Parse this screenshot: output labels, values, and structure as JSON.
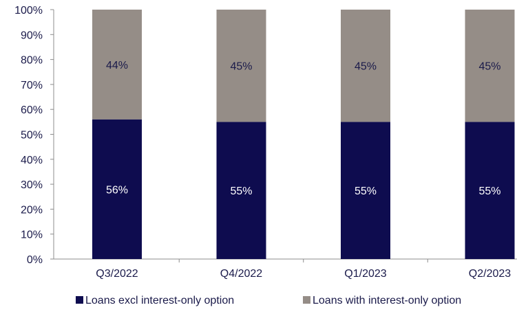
{
  "chart_data": {
    "type": "bar",
    "stacked": true,
    "percent_stacked": true,
    "categories": [
      "Q3/2022",
      "Q4/2022",
      "Q1/2023",
      "Q2/2023"
    ],
    "series": [
      {
        "name": "Loans excl interest-only option",
        "values": [
          56,
          55,
          55,
          55
        ],
        "labels": [
          "56%",
          "55%",
          "55%",
          "55%"
        ],
        "color": "#0e0c4f",
        "label_color": "#ffffff"
      },
      {
        "name": "Loans with interest-only option",
        "values": [
          44,
          45,
          45,
          45
        ],
        "labels": [
          "44%",
          "45%",
          "45%",
          "45%"
        ],
        "color": "#958d87",
        "label_color": "#1a1a4a"
      }
    ],
    "ylim": [
      0,
      100
    ],
    "yticks": [
      "0%",
      "10%",
      "20%",
      "30%",
      "40%",
      "50%",
      "60%",
      "70%",
      "80%",
      "90%",
      "100%"
    ],
    "grid": false,
    "legend_position": "bottom"
  }
}
